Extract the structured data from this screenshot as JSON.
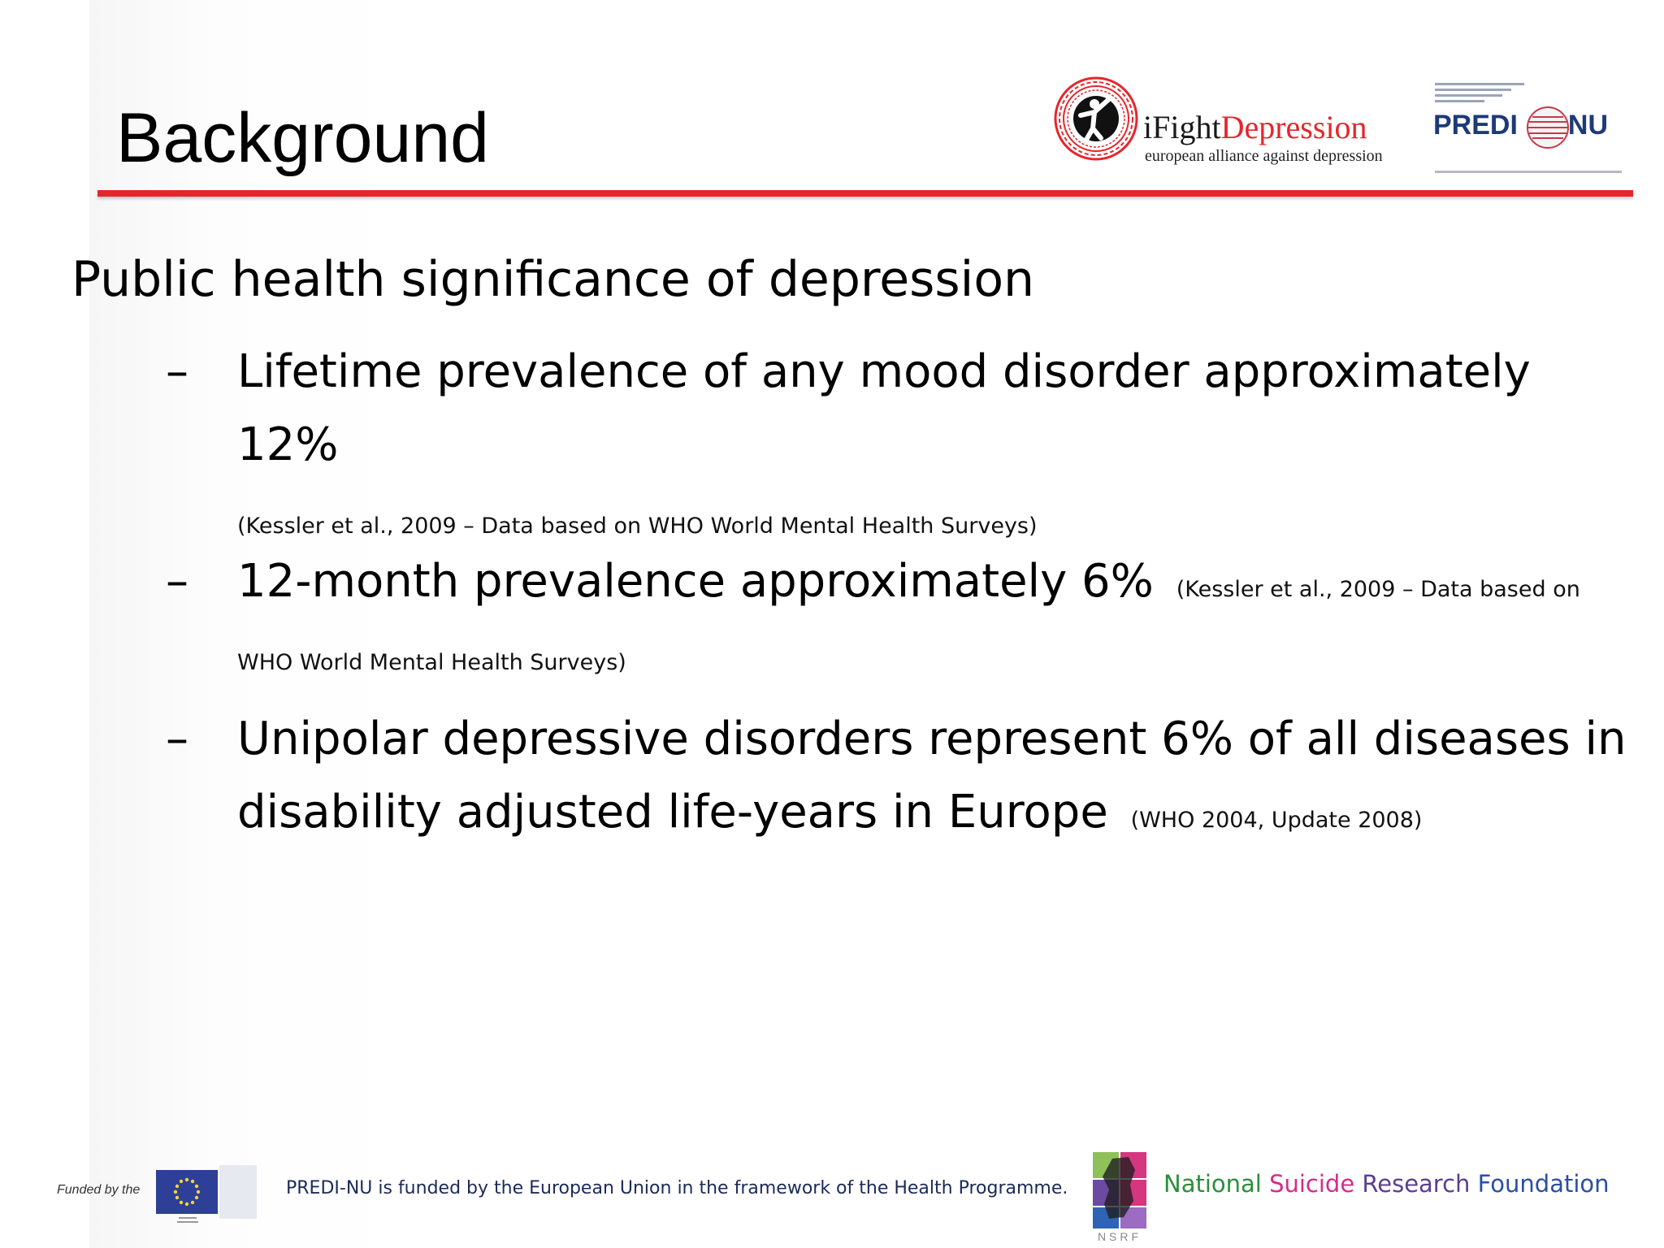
{
  "slide": {
    "title": "Background",
    "subtitle": "Public health significance of depression",
    "bullets": [
      {
        "marker": "–",
        "text": "Lifetime prevalence of any mood disorder approximately 12%",
        "citation": "(Kessler et al., 2009 – Data based on WHO World Mental Health Surveys)"
      },
      {
        "marker": "–",
        "text": "12-month prevalence approximately 6%",
        "citation": "(Kessler et al., 2009 – Data based on WHO World Mental Health Surveys)"
      },
      {
        "marker": "–",
        "text": "Unipolar depressive disorders represent 6% of all diseases in disability adjusted life-years in Europe",
        "citation": "(WHO 2004, Update 2008)"
      }
    ]
  },
  "header_logos": {
    "ifight": {
      "title_part1": "iFight",
      "title_part2": "Depression",
      "subtitle": "european alliance against depression",
      "icon": "person-in-circle-icon",
      "brand_color": "#e4262c"
    },
    "predi_nu": {
      "left": "PREDI",
      "right": "NU",
      "icon": "globe-icon",
      "brand_color": "#1d3a78"
    }
  },
  "footer": {
    "funded_by": "Funded by the",
    "eu_icon": "eu-flag-icon",
    "note": "PREDI-NU  is funded by the European Union in the framework of the Health Programme.",
    "nsrf_label": "NSRF",
    "nsrf_icon": "nsrf-ireland-icon",
    "nsrf_name_words": [
      "National",
      "Suicide",
      "Research",
      "Foundation"
    ]
  },
  "colors": {
    "accent_rule": "#e4262c",
    "text": "#000000"
  }
}
